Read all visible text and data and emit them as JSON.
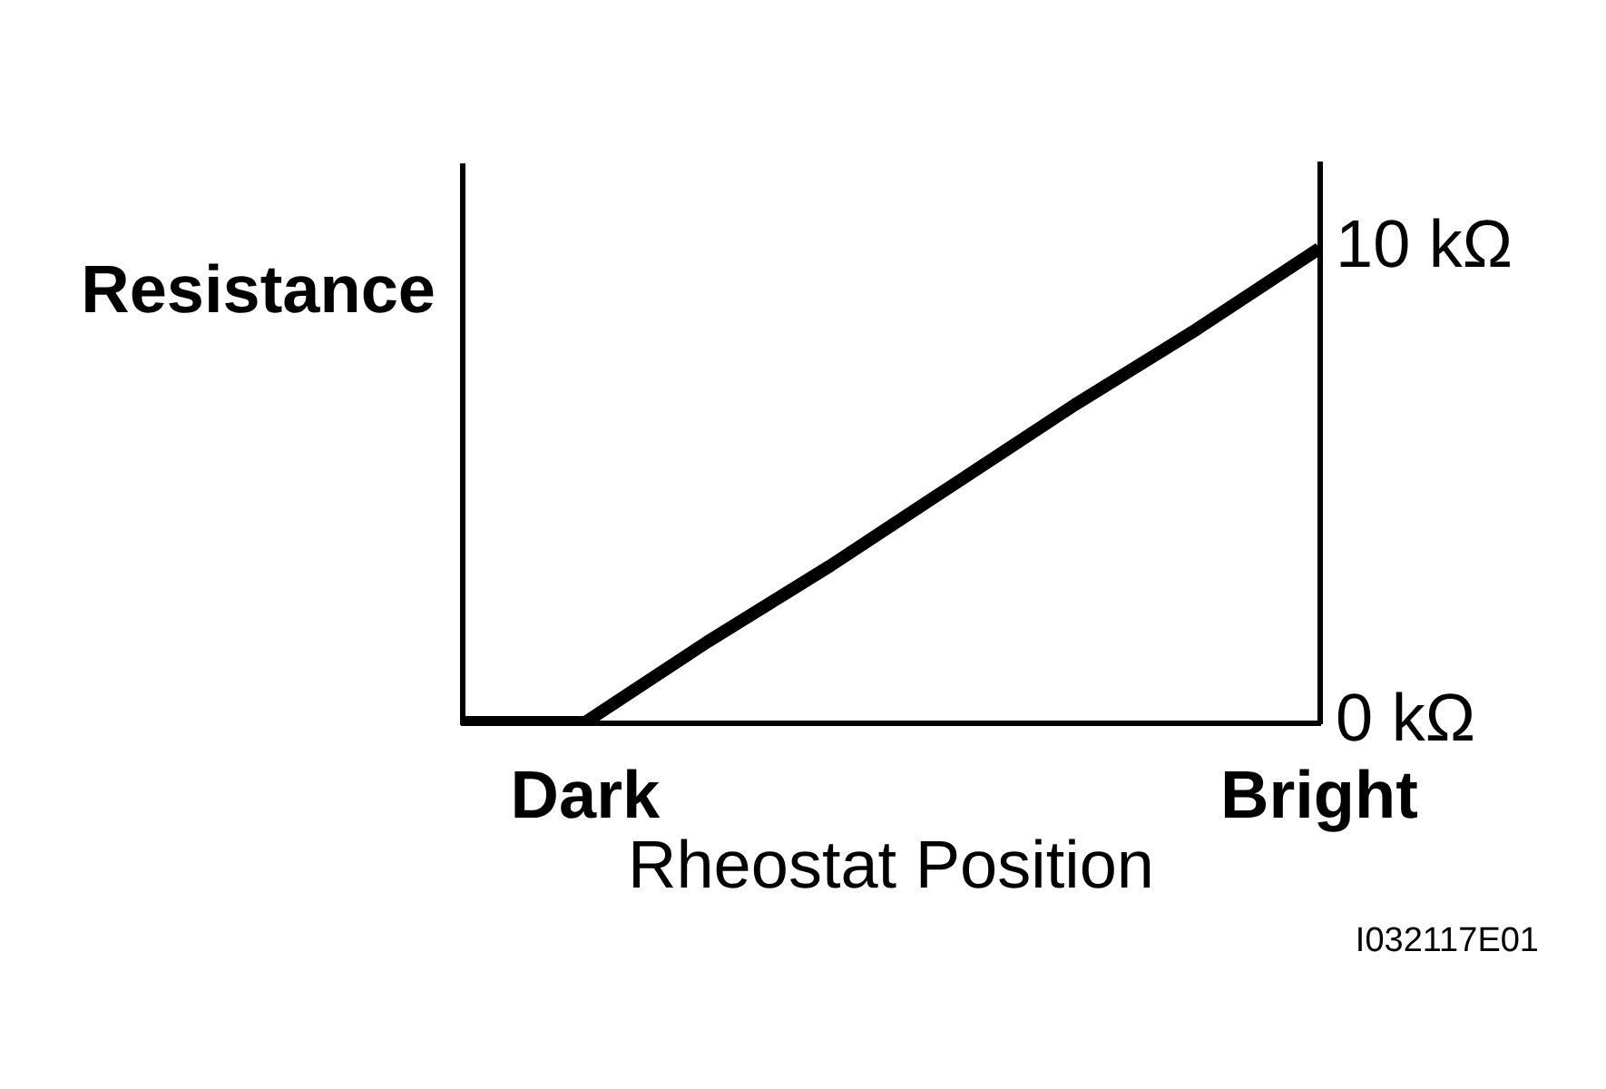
{
  "chart_data": {
    "type": "line",
    "categories": [
      null,
      "Dark",
      null,
      null,
      null,
      null,
      null,
      "Bright"
    ],
    "values": [
      0,
      0,
      1.7,
      3.3,
      5.0,
      6.7,
      8.3,
      10
    ],
    "color": "#000000",
    "ylim": [
      0,
      11.8
    ],
    "yticks": [
      {
        "value": 0,
        "label": "0 kΩ"
      },
      {
        "value": 10,
        "label": "10 kΩ"
      }
    ],
    "xlabel": "Rheostat Position",
    "ylabel": "Resistance",
    "annotations": [
      "I032117E01"
    ],
    "grid": false,
    "legend": false,
    "marker": "none",
    "line_style": "solid"
  }
}
